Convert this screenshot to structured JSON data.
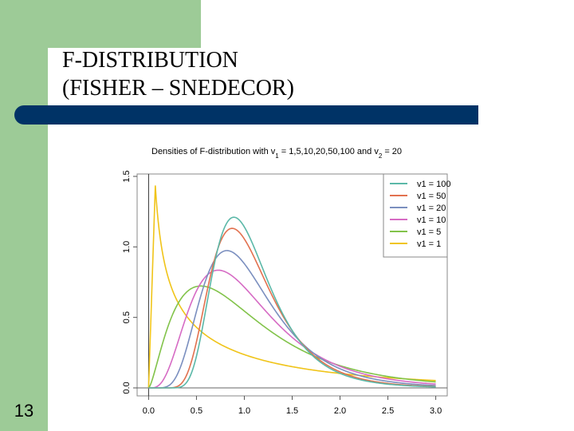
{
  "slide": {
    "title_line1": "F-DISTRIBUTION",
    "title_line2": "(FISHER – SNEDECOR)",
    "page_number": "13",
    "colors": {
      "green_accent": "#9dcb97",
      "navy_bar": "#003366"
    }
  },
  "chart_data": {
    "type": "line",
    "title": "Densities of F-distribution with v1 = 1,5,10,20,50,100 and v2 = 20",
    "xlabel": "",
    "ylabel": "",
    "xlim": [
      0,
      3
    ],
    "ylim": [
      0,
      1.5
    ],
    "x_ticks": [
      "0.0",
      "0.5",
      "1.0",
      "1.5",
      "2.0",
      "2.5",
      "3.0"
    ],
    "y_ticks": [
      "0.0",
      "0.5",
      "1.0",
      "1.5"
    ],
    "legend_position": "top-right",
    "v2": 20,
    "series": [
      {
        "name": "v1 = 100",
        "d1": 100,
        "color": "#5bb8a8"
      },
      {
        "name": "v1 = 50",
        "d1": 50,
        "color": "#e2714f"
      },
      {
        "name": "v1 = 20",
        "d1": 20,
        "color": "#7b8fbf"
      },
      {
        "name": "v1 = 10",
        "d1": 10,
        "color": "#d66bc4"
      },
      {
        "name": "v1 = 5",
        "d1": 5,
        "color": "#82c34a"
      },
      {
        "name": "v1 = 1",
        "d1": 1,
        "color": "#f0c419"
      }
    ]
  }
}
